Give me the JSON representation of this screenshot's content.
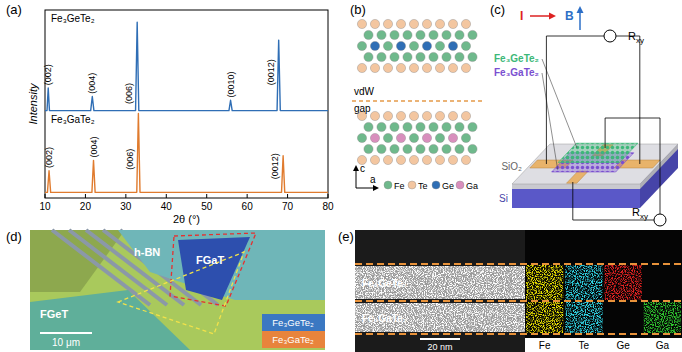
{
  "panel_labels": [
    "(a)",
    "(b)",
    "(c)",
    "(d)",
    "(e)"
  ],
  "chart_data": {
    "type": "line",
    "x_label": "2θ (°)",
    "y_label": "Intensity",
    "xlim": [
      10,
      80
    ],
    "xticks": [
      10,
      20,
      30,
      40,
      50,
      60,
      70,
      80
    ],
    "ylim": [
      0,
      200
    ],
    "tick_labels": "x",
    "series": [
      {
        "name": "Fe₃GeTe₂",
        "color": "#2f6eb5",
        "x": [
          10,
          10.5,
          10.8,
          11.1,
          21.3,
          21.7,
          22.1,
          32.4,
          32.8,
          33.2,
          55.5,
          55.9,
          56.3,
          67.4,
          67.8,
          68.2,
          80
        ],
        "values": [
          93,
          93,
          117,
          93,
          93,
          108,
          93,
          93,
          187,
          93,
          93,
          104,
          93,
          93,
          168,
          93,
          93
        ]
      },
      {
        "name": "Fe₃GaTe₂",
        "color": "#e07b2e",
        "x": [
          10,
          10.6,
          11.0,
          11.4,
          21.6,
          22.0,
          22.4,
          32.7,
          33.1,
          33.5,
          68.5,
          68.9,
          69.3,
          80
        ],
        "values": [
          6,
          6,
          29,
          6,
          6,
          40,
          6,
          6,
          90,
          6,
          6,
          45,
          6,
          6
        ]
      }
    ],
    "annotations": [
      {
        "text": "(002)",
        "x": 10.8,
        "y": 120
      },
      {
        "text": "(004)",
        "x": 21.7,
        "y": 111
      },
      {
        "text": "(006)",
        "x": 30.8,
        "y": 100
      },
      {
        "text": "(0010)",
        "x": 55.9,
        "y": 107
      },
      {
        "text": "(0012)",
        "x": 65.8,
        "y": 120
      },
      {
        "text": "(002)",
        "x": 11.0,
        "y": 32
      },
      {
        "text": "(004)",
        "x": 22.0,
        "y": 43
      },
      {
        "text": "(006)",
        "x": 31.1,
        "y": 30
      },
      {
        "text": "(0012)",
        "x": 66.9,
        "y": 20
      }
    ]
  },
  "structure": {
    "gap_label": [
      "vdW",
      "gap"
    ],
    "axes": [
      "c",
      "a"
    ],
    "elements": [
      {
        "name": "Fe",
        "color": "#6fb98c"
      },
      {
        "name": "Te",
        "color": "#f3c6a0"
      },
      {
        "name": "Ge",
        "color": "#2f6eb5"
      },
      {
        "name": "Ga",
        "color": "#d88fbd"
      }
    ]
  },
  "device": {
    "layers": [
      {
        "name": "Fe₃GeTe₂",
        "color": "#3cb878"
      },
      {
        "name": "Fe₃GaTe₂",
        "color": "#7a4fd0"
      }
    ],
    "current": "I",
    "field": "B",
    "resistance": {
      "symbol": "R",
      "subscript": "xy"
    },
    "substrate": [
      "SiO₂",
      "Si"
    ]
  },
  "optical": {
    "labels": [
      "h-BN",
      "FGaT",
      "FGeT"
    ],
    "scale_bar": "10 μm",
    "legend": [
      {
        "name": "Fe₃GeTe₂",
        "color": "#3b78c2"
      },
      {
        "name": "Fe₃GaTe₂",
        "color": "#e8843c"
      }
    ]
  },
  "stem": {
    "layers": [
      "Fe₃GeTe₂",
      "Fe₃GaTe₂"
    ],
    "scale_bar": "20 nm",
    "maps": [
      {
        "element": "Fe",
        "color": "#e8e000"
      },
      {
        "element": "Te",
        "color": "#2fd0e0"
      },
      {
        "element": "Ge",
        "color": "#e02020"
      },
      {
        "element": "Ga",
        "color": "#2ec62e"
      }
    ]
  }
}
